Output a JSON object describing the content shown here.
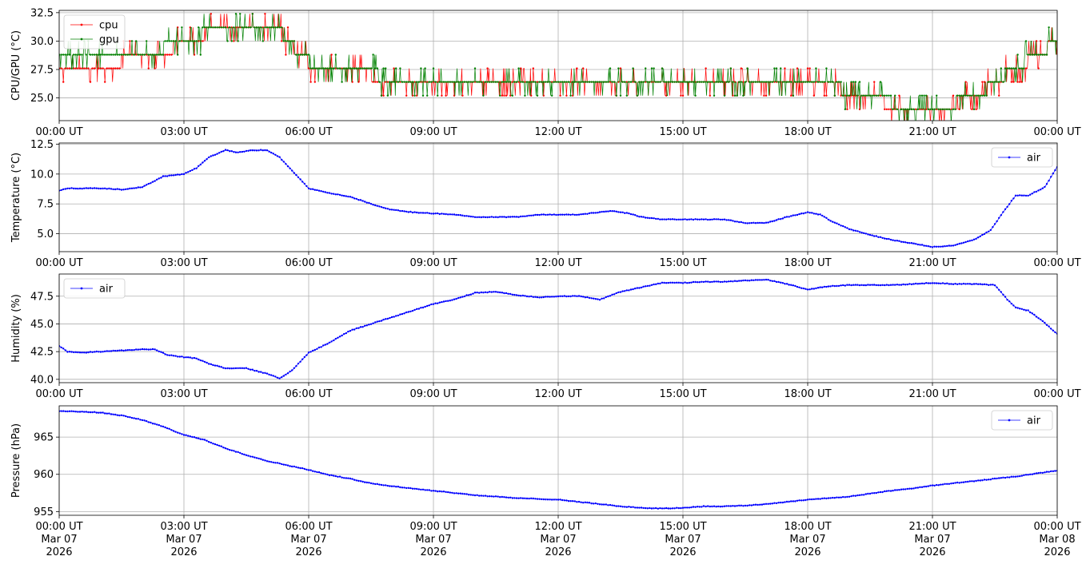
{
  "chart_data": [
    {
      "type": "line",
      "ylabel": "CPU/GPU (°C)",
      "ylim": [
        23.0,
        32.7
      ],
      "yticks": [
        "25.0",
        "27.5",
        "30.0",
        "32.5"
      ],
      "xticks": [
        "00:00 UT",
        "03:00 UT",
        "06:00 UT",
        "09:00 UT",
        "12:00 UT",
        "15:00 UT",
        "18:00 UT",
        "21:00 UT",
        "00:00 UT"
      ],
      "x_unit": "hours since 2026-03-07 00:00 UT",
      "grid": true,
      "legend_position": "upper-left",
      "series": [
        {
          "name": "cpu",
          "color": "#ff0000",
          "marker": "dot",
          "step": 1.2,
          "x": [
            0,
            0.5,
            1.0,
            1.5,
            2.0,
            2.5,
            3.0,
            3.3,
            3.6,
            4.0,
            4.5,
            5.0,
            5.3,
            5.6,
            5.8,
            6.0,
            6.5,
            7.0,
            7.5,
            8.0,
            9.0,
            10.0,
            11.0,
            12.0,
            13.0,
            14.0,
            15.0,
            16.0,
            17.0,
            18.0,
            18.5,
            19.0,
            19.5,
            20.0,
            20.5,
            21.0,
            21.5,
            22.0,
            22.5,
            23.0,
            23.5,
            24.0
          ],
          "y": [
            28.0,
            28.1,
            28.1,
            28.2,
            28.7,
            29.3,
            29.5,
            30.0,
            31.0,
            31.3,
            31.4,
            31.3,
            30.8,
            29.5,
            28.8,
            28.1,
            27.9,
            27.7,
            27.0,
            26.7,
            26.5,
            26.5,
            26.6,
            26.7,
            26.6,
            26.5,
            26.4,
            26.3,
            26.3,
            26.3,
            26.3,
            25.5,
            24.8,
            24.5,
            24.3,
            24.2,
            24.4,
            25.0,
            26.2,
            27.8,
            28.5,
            30.2
          ]
        },
        {
          "name": "gpu",
          "color": "#008000",
          "marker": "dot",
          "step": 1.2,
          "x": [
            0,
            0.5,
            1.0,
            1.5,
            2.0,
            2.5,
            3.0,
            3.3,
            3.6,
            4.0,
            4.5,
            5.0,
            5.3,
            5.6,
            5.8,
            6.0,
            6.5,
            7.0,
            7.5,
            8.0,
            9.0,
            10.0,
            11.0,
            12.0,
            13.0,
            14.0,
            15.0,
            16.0,
            17.0,
            18.0,
            18.5,
            19.0,
            19.5,
            20.0,
            20.5,
            21.0,
            21.5,
            22.0,
            22.5,
            23.0,
            23.5,
            24.0
          ],
          "y": [
            28.2,
            28.3,
            28.3,
            28.4,
            28.8,
            29.4,
            29.7,
            30.2,
            31.1,
            31.4,
            31.5,
            31.4,
            30.9,
            29.6,
            28.9,
            28.2,
            28.0,
            27.8,
            27.1,
            26.8,
            26.6,
            26.6,
            26.7,
            26.8,
            26.7,
            26.6,
            26.5,
            26.4,
            26.4,
            26.4,
            26.4,
            25.6,
            24.9,
            24.6,
            24.4,
            24.3,
            24.5,
            25.1,
            26.3,
            27.9,
            28.6,
            30.1
          ]
        }
      ]
    },
    {
      "type": "line",
      "ylabel": "Temperature (°C)",
      "ylim": [
        3.5,
        12.6
      ],
      "yticks": [
        "5.0",
        "7.5",
        "10.0",
        "12.5"
      ],
      "xticks": [
        "00:00 UT",
        "03:00 UT",
        "06:00 UT",
        "09:00 UT",
        "12:00 UT",
        "15:00 UT",
        "18:00 UT",
        "21:00 UT",
        "00:00 UT"
      ],
      "x_unit": "hours since 2026-03-07 00:00 UT",
      "grid": true,
      "legend_position": "upper-right",
      "series": [
        {
          "name": "air",
          "color": "#0000ff",
          "marker": "dot",
          "x": [
            0,
            0.2,
            0.5,
            1.0,
            1.5,
            2.0,
            2.5,
            3.0,
            3.3,
            3.6,
            4.0,
            4.3,
            4.6,
            5.0,
            5.3,
            5.6,
            6.0,
            6.5,
            7.0,
            7.5,
            8.0,
            8.5,
            9.0,
            9.5,
            10.0,
            10.5,
            11.0,
            11.5,
            12.0,
            12.5,
            13.0,
            13.3,
            13.7,
            14.0,
            14.5,
            15.0,
            15.5,
            16.0,
            16.5,
            17.0,
            17.5,
            18.0,
            18.3,
            18.6,
            19.0,
            19.5,
            20.0,
            20.5,
            21.0,
            21.5,
            22.0,
            22.4,
            22.7,
            23.0,
            23.3,
            23.7,
            24.0
          ],
          "y": [
            8.6,
            8.8,
            8.8,
            8.8,
            8.7,
            8.9,
            9.8,
            10.0,
            10.5,
            11.4,
            12.0,
            11.8,
            12.0,
            12.0,
            11.4,
            10.3,
            8.8,
            8.4,
            8.1,
            7.5,
            7.0,
            6.8,
            6.7,
            6.6,
            6.4,
            6.4,
            6.4,
            6.6,
            6.6,
            6.6,
            6.8,
            6.9,
            6.7,
            6.4,
            6.2,
            6.2,
            6.2,
            6.2,
            5.9,
            5.9,
            6.4,
            6.8,
            6.6,
            6.0,
            5.4,
            4.9,
            4.5,
            4.2,
            3.9,
            4.0,
            4.5,
            5.3,
            6.8,
            8.2,
            8.2,
            8.9,
            10.6
          ]
        }
      ]
    },
    {
      "type": "line",
      "ylabel": "Humidity (%)",
      "ylim": [
        39.7,
        49.5
      ],
      "yticks": [
        "40.0",
        "42.5",
        "45.0",
        "47.5"
      ],
      "xticks": [
        "00:00 UT",
        "03:00 UT",
        "06:00 UT",
        "09:00 UT",
        "12:00 UT",
        "15:00 UT",
        "18:00 UT",
        "21:00 UT",
        "00:00 UT"
      ],
      "x_unit": "hours since 2026-03-07 00:00 UT",
      "grid": true,
      "legend_position": "upper-left",
      "series": [
        {
          "name": "air",
          "color": "#0000ff",
          "marker": "dot",
          "x": [
            0,
            0.2,
            0.5,
            1.0,
            1.5,
            2.0,
            2.3,
            2.6,
            3.0,
            3.3,
            3.6,
            4.0,
            4.5,
            5.0,
            5.3,
            5.6,
            6.0,
            6.5,
            7.0,
            7.5,
            8.0,
            8.5,
            9.0,
            9.5,
            10.0,
            10.5,
            11.0,
            11.5,
            12.0,
            12.5,
            13.0,
            13.5,
            14.0,
            14.5,
            15.0,
            15.5,
            16.0,
            16.5,
            17.0,
            17.5,
            18.0,
            18.5,
            19.0,
            19.5,
            20.0,
            20.5,
            21.0,
            21.5,
            22.0,
            22.5,
            22.8,
            23.0,
            23.3,
            23.6,
            24.0
          ],
          "y": [
            43.0,
            42.5,
            42.4,
            42.5,
            42.6,
            42.7,
            42.7,
            42.2,
            42.0,
            41.9,
            41.4,
            41.0,
            41.0,
            40.5,
            40.1,
            40.8,
            42.4,
            43.3,
            44.4,
            45.0,
            45.6,
            46.2,
            46.8,
            47.2,
            47.8,
            47.9,
            47.6,
            47.4,
            47.5,
            47.5,
            47.2,
            47.9,
            48.3,
            48.7,
            48.7,
            48.8,
            48.8,
            48.9,
            49.0,
            48.6,
            48.1,
            48.4,
            48.5,
            48.5,
            48.5,
            48.6,
            48.7,
            48.6,
            48.6,
            48.5,
            47.2,
            46.5,
            46.2,
            45.4,
            44.1
          ]
        }
      ]
    },
    {
      "type": "line",
      "ylabel": "Pressure (hPa)",
      "ylim": [
        954.5,
        969.2
      ],
      "yticks": [
        "955",
        "960",
        "965"
      ],
      "xticks": [
        [
          "00:00 UT",
          "Mar 07",
          "2026"
        ],
        [
          "03:00 UT",
          "Mar 07",
          "2026"
        ],
        [
          "06:00 UT",
          "Mar 07",
          "2026"
        ],
        [
          "09:00 UT",
          "Mar 07",
          "2026"
        ],
        [
          "12:00 UT",
          "Mar 07",
          "2026"
        ],
        [
          "15:00 UT",
          "Mar 07",
          "2026"
        ],
        [
          "18:00 UT",
          "Mar 07",
          "2026"
        ],
        [
          "21:00 UT",
          "Mar 07",
          "2026"
        ],
        [
          "00:00 UT",
          "Mar 08",
          "2026"
        ]
      ],
      "x_unit": "hours since 2026-03-07 00:00 UT",
      "grid": true,
      "legend_position": "upper-right",
      "series": [
        {
          "name": "air",
          "color": "#0000ff",
          "marker": "dot",
          "x": [
            0,
            0.5,
            1.0,
            1.5,
            2.0,
            2.5,
            3.0,
            3.5,
            4.0,
            4.5,
            5.0,
            5.5,
            6.0,
            6.5,
            7.0,
            7.5,
            8.0,
            8.5,
            9.0,
            9.5,
            10.0,
            10.5,
            11.0,
            11.5,
            12.0,
            12.5,
            13.0,
            13.5,
            14.0,
            14.5,
            15.0,
            15.5,
            16.0,
            16.5,
            17.0,
            17.5,
            18.0,
            18.5,
            19.0,
            19.5,
            20.0,
            20.5,
            21.0,
            21.5,
            22.0,
            22.5,
            23.0,
            23.5,
            24.0
          ],
          "y": [
            968.5,
            968.4,
            968.3,
            967.9,
            967.3,
            966.4,
            965.3,
            964.6,
            963.5,
            962.6,
            961.8,
            961.2,
            960.6,
            959.9,
            959.4,
            958.8,
            958.4,
            958.1,
            957.8,
            957.5,
            957.2,
            957.0,
            956.8,
            956.7,
            956.6,
            956.3,
            956.0,
            955.7,
            955.5,
            955.4,
            955.5,
            955.7,
            955.7,
            955.8,
            956.0,
            956.3,
            956.6,
            956.8,
            957.0,
            957.4,
            957.8,
            958.1,
            958.5,
            958.8,
            959.1,
            959.4,
            959.7,
            960.1,
            960.5
          ]
        }
      ]
    }
  ]
}
